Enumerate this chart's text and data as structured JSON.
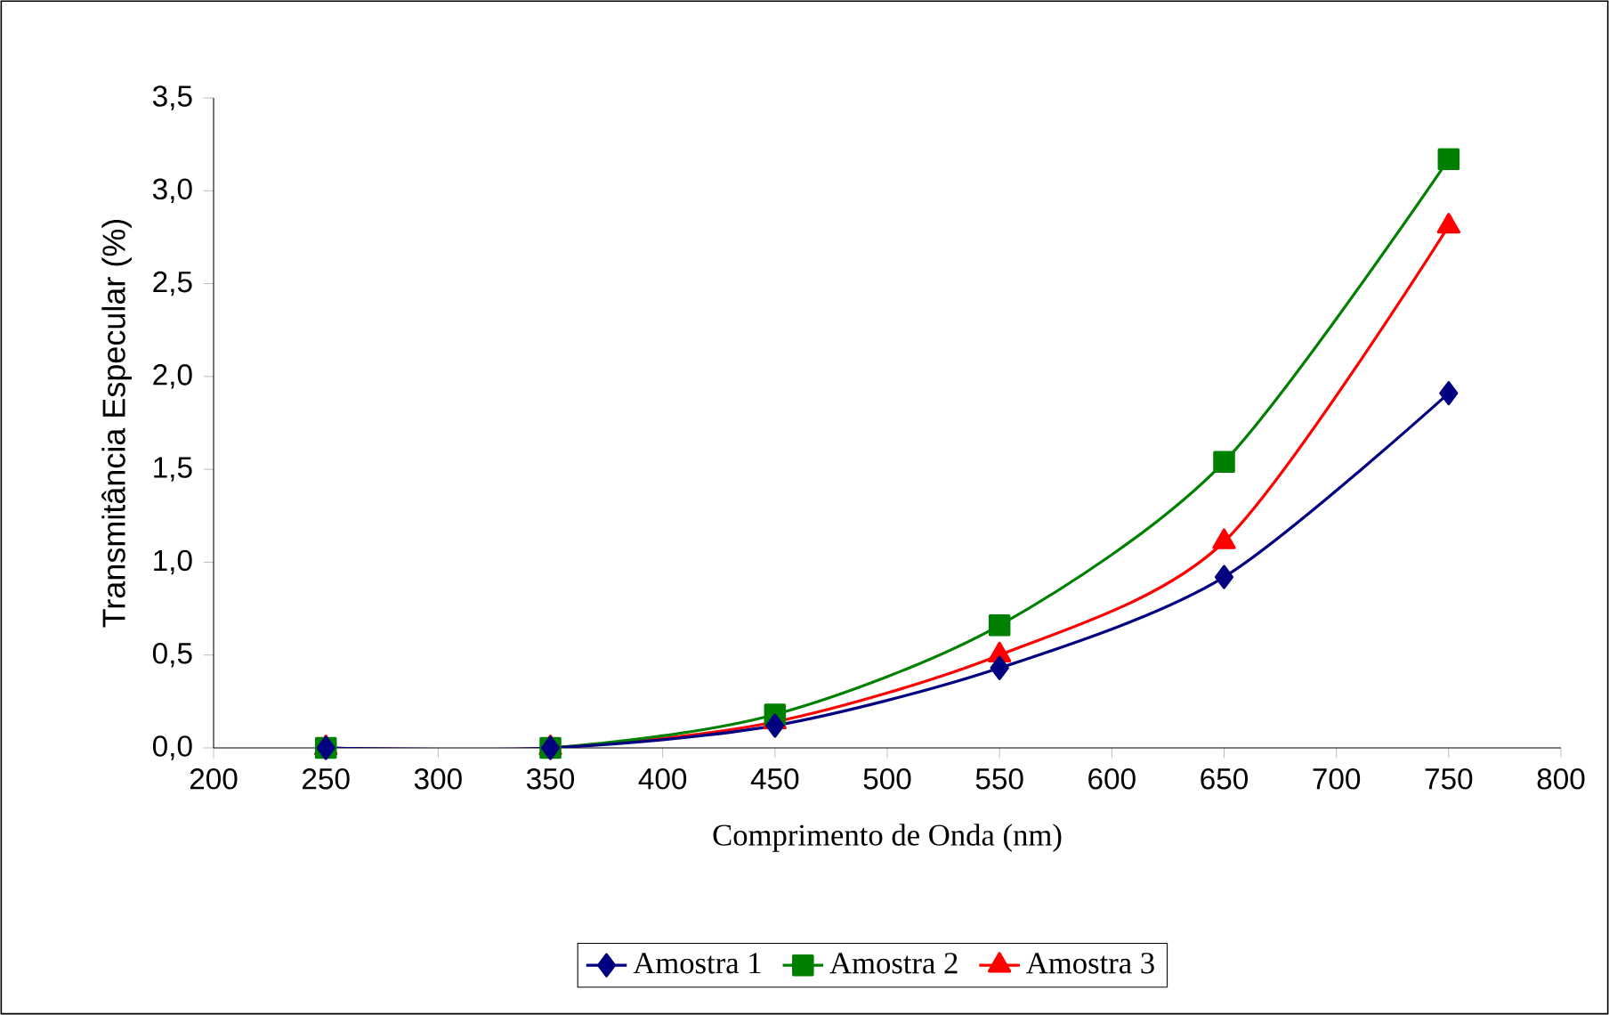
{
  "chart_data": {
    "type": "line",
    "xlabel": "Comprimento de Onda (nm)",
    "ylabel": "Transmitância Especular (%)",
    "x": [
      250,
      350,
      450,
      550,
      650,
      750
    ],
    "series": [
      {
        "name": "Amostra 1",
        "color": "#000080",
        "marker": "diamond",
        "values": [
          0,
          0,
          0.12,
          0.43,
          0.92,
          1.91
        ]
      },
      {
        "name": "Amostra 2",
        "color": "#008000",
        "marker": "square",
        "values": [
          0,
          0,
          0.18,
          0.66,
          1.54,
          3.17
        ]
      },
      {
        "name": "Amostra 3",
        "color": "#ff0000",
        "marker": "triangle",
        "values": [
          0,
          0,
          0.14,
          0.5,
          1.11,
          2.81
        ]
      }
    ],
    "xlim": [
      200,
      800
    ],
    "xticks": [
      200,
      250,
      300,
      350,
      400,
      450,
      500,
      550,
      600,
      650,
      700,
      750,
      800
    ],
    "ylim": [
      0,
      3.5
    ],
    "yticks": [
      {
        "value": 0,
        "label": "0,0"
      },
      {
        "value": 0.5,
        "label": "0,5"
      },
      {
        "value": 1,
        "label": "1,0"
      },
      {
        "value": 1.5,
        "label": "1,5"
      },
      {
        "value": 2,
        "label": "2,0"
      },
      {
        "value": 2.5,
        "label": "2,5"
      },
      {
        "value": 3,
        "label": "3,0"
      },
      {
        "value": 3.5,
        "label": "3,5"
      }
    ],
    "legend": "bottom",
    "grid": false,
    "line_style": "solid"
  }
}
